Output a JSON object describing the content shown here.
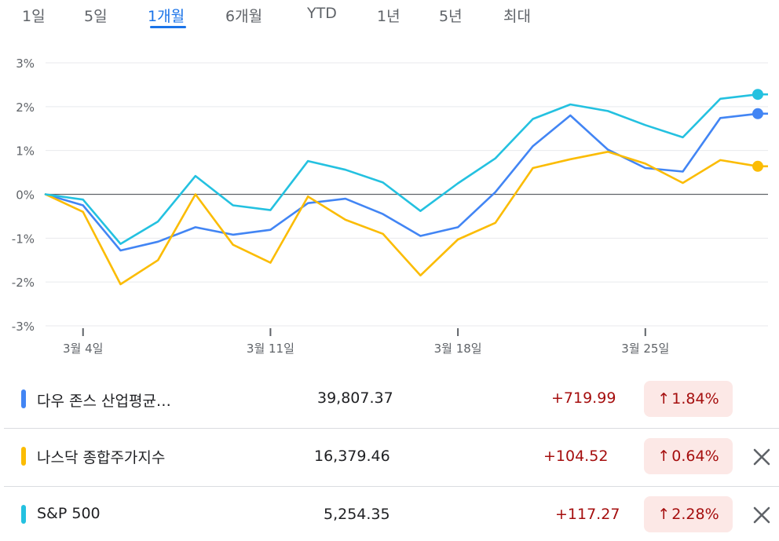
{
  "tabs": [
    {
      "label": "1일",
      "active": false
    },
    {
      "label": "5일",
      "active": false
    },
    {
      "label": "1개월",
      "active": true
    },
    {
      "label": "6개월",
      "active": false
    },
    {
      "label": "YTD",
      "active": false
    },
    {
      "label": "1년",
      "active": false
    },
    {
      "label": "5년",
      "active": false
    },
    {
      "label": "최대",
      "active": false
    }
  ],
  "chart_data": {
    "type": "line",
    "title": "",
    "xlabel": "",
    "ylabel": "",
    "ylim": [
      -3,
      3
    ],
    "y_ticks": [
      "3%",
      "2%",
      "1%",
      "0%",
      "-1%",
      "-2%",
      "-3%"
    ],
    "x_tick_labels": [
      "3월 4일",
      "3월 11일",
      "3월 18일",
      "3월 25일"
    ],
    "grid": true,
    "series": [
      {
        "name": "다우 존스 산업평균지수",
        "color": "#4285f4",
        "values": [
          0,
          -0.25,
          -1.28,
          -1.08,
          -0.75,
          -0.92,
          -0.81,
          -0.2,
          -0.1,
          -0.45,
          -0.95,
          -0.75,
          0.05,
          1.1,
          1.8,
          1.02,
          0.6,
          0.52,
          1.74,
          1.84
        ]
      },
      {
        "name": "나스닥 종합주가지수",
        "color": "#fbbc04",
        "values": [
          0,
          -0.4,
          -2.05,
          -1.5,
          0.0,
          -1.15,
          -1.56,
          -0.05,
          -0.58,
          -0.9,
          -1.85,
          -1.03,
          -0.65,
          0.6,
          0.8,
          0.97,
          0.7,
          0.26,
          0.78,
          0.64
        ]
      },
      {
        "name": "S&P 500",
        "color": "#24c1e0",
        "values": [
          0,
          -0.12,
          -1.13,
          -0.62,
          0.42,
          -0.25,
          -0.36,
          0.76,
          0.56,
          0.27,
          -0.38,
          0.25,
          0.82,
          1.72,
          2.05,
          1.9,
          1.58,
          1.3,
          2.18,
          2.28
        ]
      }
    ]
  },
  "rows": [
    {
      "name": "다우 존스 산업평균…",
      "price": "39,807.37",
      "change": "+719.99",
      "pct": "1.84%",
      "arrow": "arrow-up-icon",
      "color": "#4285f4",
      "removable": false
    },
    {
      "name": "나스닥 종합주가지수",
      "price": "16,379.46",
      "change": "+104.52",
      "pct": "0.64%",
      "arrow": "arrow-up-icon",
      "color": "#fbbc04",
      "removable": true
    },
    {
      "name": "S&P 500",
      "price": "5,254.35",
      "change": "+117.27",
      "pct": "2.28%",
      "arrow": "arrow-up-icon",
      "color": "#24c1e0",
      "removable": true
    }
  ]
}
